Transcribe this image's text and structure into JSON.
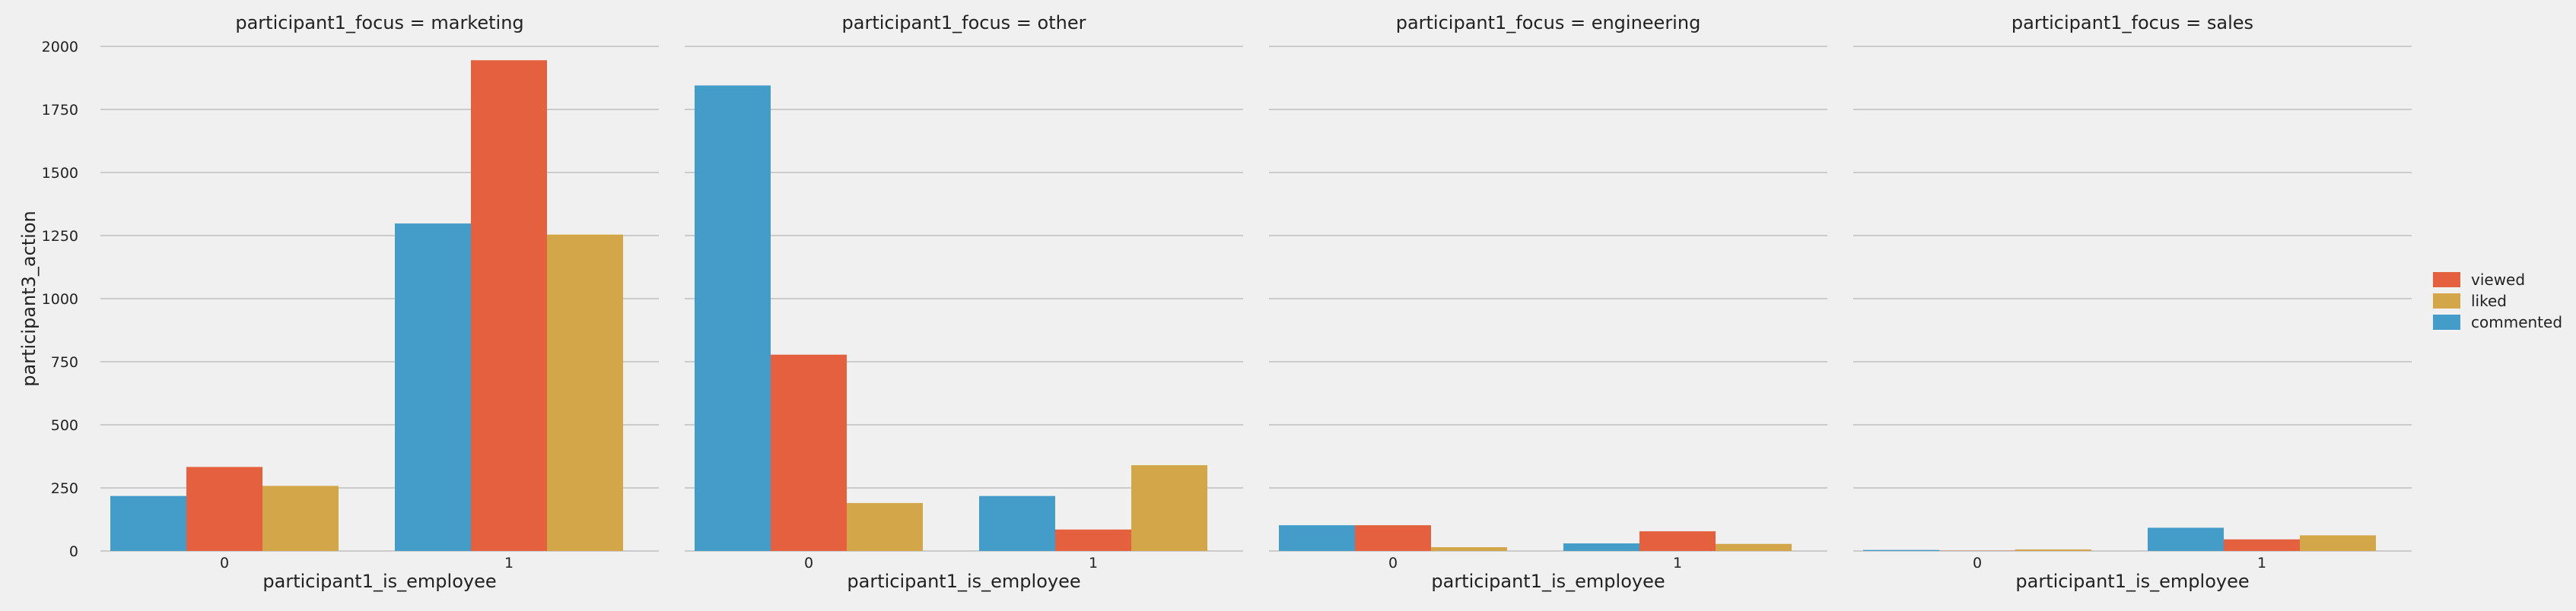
{
  "chart_data": {
    "type": "bar",
    "ylabel": "participant3_action",
    "ylim": [
      0,
      2000
    ],
    "yticks": [
      "0",
      "250",
      "500",
      "750",
      "1000",
      "1250",
      "1500",
      "1750",
      "2000"
    ],
    "ytick_values": [
      0,
      250,
      500,
      750,
      1000,
      1250,
      1500,
      1750,
      2000
    ],
    "grid": true,
    "legend_position": "right",
    "legend": [
      {
        "name": "viewed",
        "color": "#e5603f"
      },
      {
        "name": "liked",
        "color": "#d4a64a"
      },
      {
        "name": "commented",
        "color": "#449dc9"
      }
    ],
    "hue_order": [
      "commented",
      "viewed",
      "liked"
    ],
    "colors": {
      "commented": "#449dc9",
      "viewed": "#e5603f",
      "liked": "#d4a64a"
    },
    "panels": [
      {
        "title": "participant1_focus = marketing",
        "xlabel": "participant1_is_employee",
        "categories": [
          "0",
          "1"
        ],
        "series": [
          {
            "name": "commented",
            "values": [
              218,
              1298
            ]
          },
          {
            "name": "viewed",
            "values": [
              333,
              1945
            ]
          },
          {
            "name": "liked",
            "values": [
              258,
              1254
            ]
          }
        ]
      },
      {
        "title": "participant1_focus = other",
        "xlabel": "participant1_is_employee",
        "categories": [
          "0",
          "1"
        ],
        "series": [
          {
            "name": "commented",
            "values": [
              1845,
              218
            ]
          },
          {
            "name": "viewed",
            "values": [
              778,
              85
            ]
          },
          {
            "name": "liked",
            "values": [
              190,
              340
            ]
          }
        ]
      },
      {
        "title": "participant1_focus = engineering",
        "xlabel": "participant1_is_employee",
        "categories": [
          "0",
          "1"
        ],
        "series": [
          {
            "name": "commented",
            "values": [
              102,
              30
            ]
          },
          {
            "name": "viewed",
            "values": [
              102,
              78
            ]
          },
          {
            "name": "liked",
            "values": [
              15,
              28
            ]
          }
        ]
      },
      {
        "title": "participant1_focus = sales",
        "xlabel": "participant1_is_employee",
        "categories": [
          "0",
          "1"
        ],
        "series": [
          {
            "name": "commented",
            "values": [
              4,
              92
            ]
          },
          {
            "name": "viewed",
            "values": [
              1,
              46
            ]
          },
          {
            "name": "liked",
            "values": [
              6,
              62
            ]
          }
        ]
      }
    ]
  }
}
